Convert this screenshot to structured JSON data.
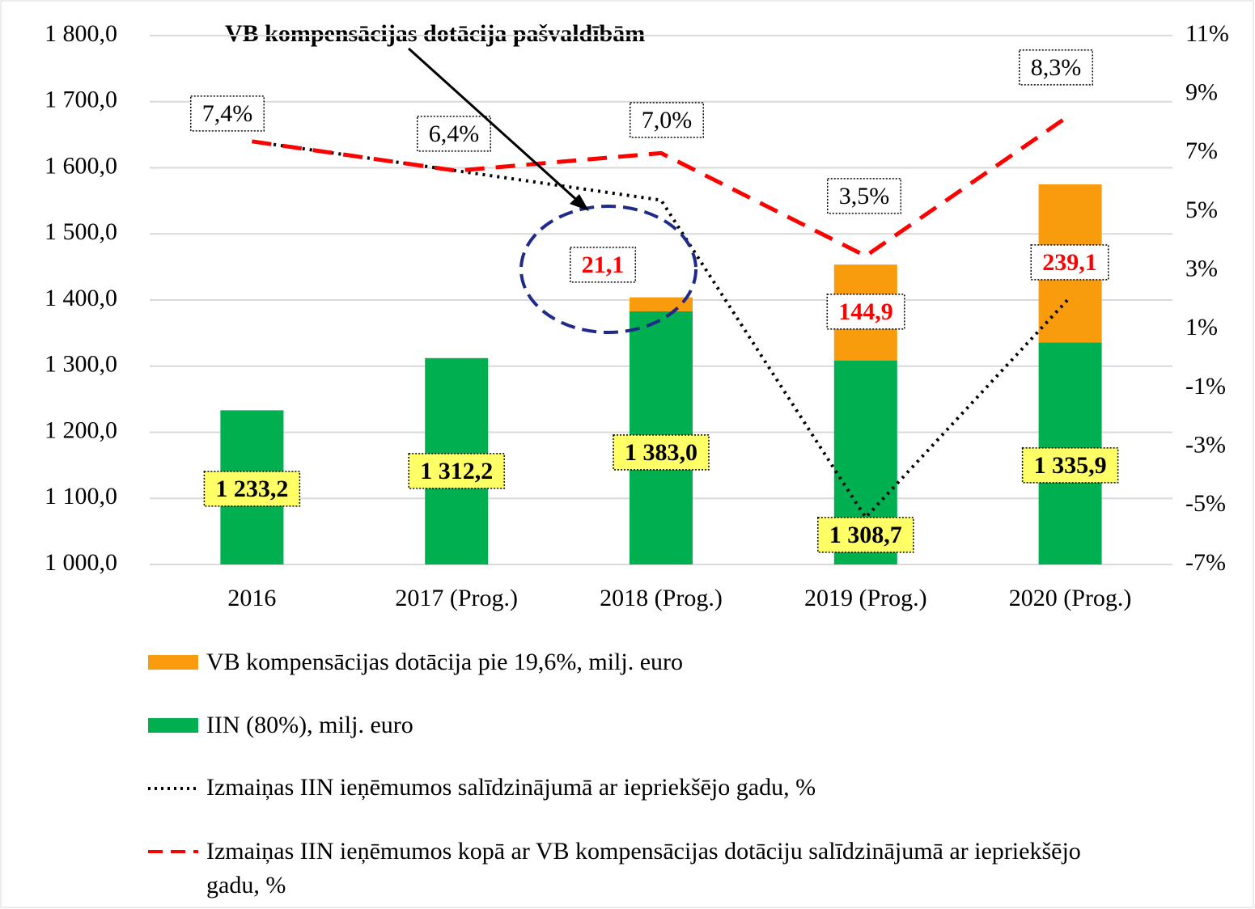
{
  "chart_data": {
    "type": "bar",
    "annotation": "VB kompensācijas dotācija pašvaldībām",
    "categories": [
      "2016",
      "2017 (Prog.)",
      "2018 (Prog.)",
      "2019 (Prog.)",
      "2020 (Prog.)"
    ],
    "ylim": [
      1000,
      1800
    ],
    "yticks": [
      {
        "value": 1000,
        "label": "1 000,0"
      },
      {
        "value": 1100,
        "label": "1 100,0"
      },
      {
        "value": 1200,
        "label": "1 200,0"
      },
      {
        "value": 1300,
        "label": "1 300,0"
      },
      {
        "value": 1400,
        "label": "1 400,0"
      },
      {
        "value": 1500,
        "label": "1 500,0"
      },
      {
        "value": 1600,
        "label": "1 600,0"
      },
      {
        "value": 1700,
        "label": "1 700,0"
      },
      {
        "value": 1800,
        "label": "1 800,0"
      }
    ],
    "y2lim": [
      -7,
      11
    ],
    "y2ticks": [
      {
        "value": -7,
        "label": "-7%"
      },
      {
        "value": -5,
        "label": "-5%"
      },
      {
        "value": -3,
        "label": "-3%"
      },
      {
        "value": -1,
        "label": "-1%"
      },
      {
        "value": 1,
        "label": "1%"
      },
      {
        "value": 3,
        "label": "3%"
      },
      {
        "value": 5,
        "label": "5%"
      },
      {
        "value": 7,
        "label": "7%"
      },
      {
        "value": 9,
        "label": "9%"
      },
      {
        "value": 11,
        "label": "11%"
      }
    ],
    "grid": true,
    "series": [
      {
        "name": "VB kompensācijas dotācija pie 19,6%, milj. euro",
        "type": "bar",
        "color": "#f89b0c",
        "values": [
          null,
          null,
          21.1,
          144.9,
          239.1
        ],
        "value_labels": [
          null,
          null,
          "21,1",
          "144,9",
          "239,1"
        ]
      },
      {
        "name": "IIN  (80%), milj. euro",
        "type": "bar",
        "color": "#00b050",
        "values": [
          1233.2,
          1312.2,
          1383.0,
          1308.7,
          1335.9
        ],
        "value_labels": [
          "1 233,2",
          "1 312,2",
          "1 383,0",
          "1 308,7",
          "1 335,9"
        ]
      },
      {
        "name": "Izmaiņas IIN ieņēmumos salīdzinājumā ar iepriekšējo gadu, %",
        "type": "line",
        "style": "dotted",
        "color": "#000000",
        "axis": "y2",
        "values": [
          7.4,
          6.4,
          5.4,
          -5.4,
          2.1
        ]
      },
      {
        "name": "Izmaiņas IIN ieņēmumos kopā ar VB kompensācijas dotāciju salīdzinājumā ar iepriekšējo gadu, %",
        "type": "line",
        "style": "dashed",
        "color": "#ff0000",
        "axis": "y2",
        "values": [
          7.4,
          6.4,
          7.0,
          3.5,
          8.3
        ],
        "value_labels": [
          "7,4%",
          "6,4%",
          "7,0%",
          "3,5%",
          "8,3%"
        ]
      }
    ]
  }
}
